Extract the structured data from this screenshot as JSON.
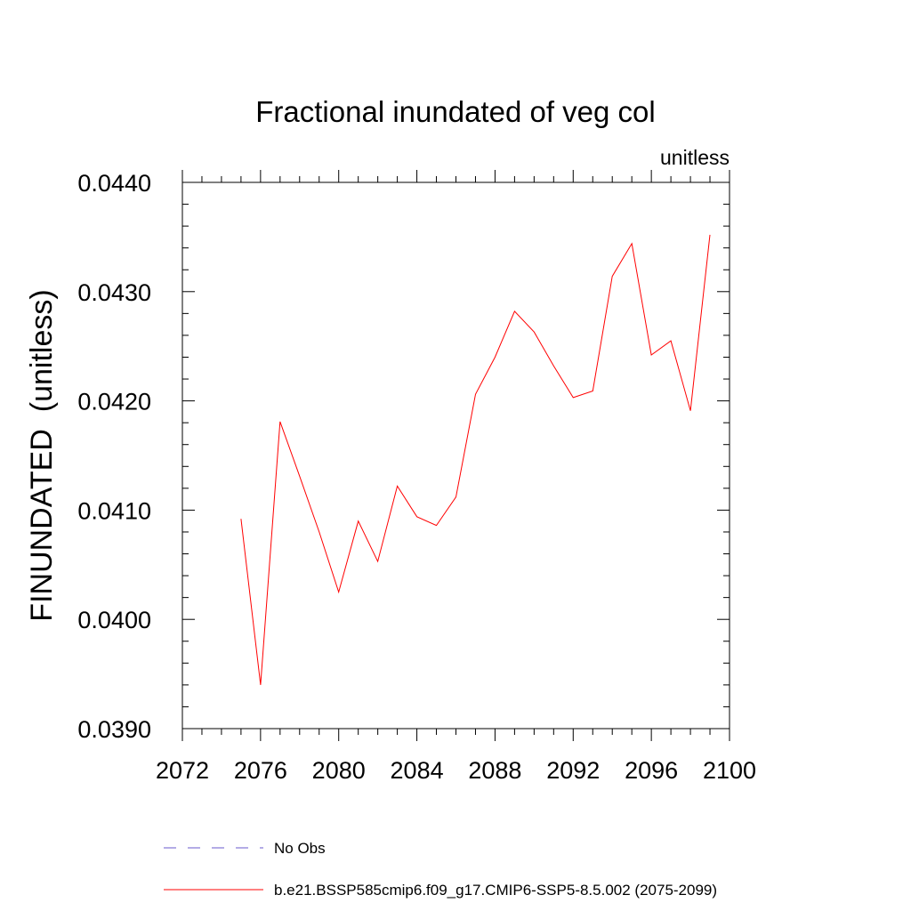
{
  "chart_data": {
    "type": "line",
    "title": "Fractional inundated of veg col",
    "units_label": "unitless",
    "ylabel": "FINUNDATED  (unitless)",
    "xlabel": "",
    "xlim": [
      2072,
      2100
    ],
    "ylim": [
      0.039,
      0.044
    ],
    "x_ticks": [
      2072,
      2076,
      2080,
      2084,
      2088,
      2092,
      2096,
      2100
    ],
    "y_ticks": [
      0.039,
      0.04,
      0.041,
      0.042,
      0.043,
      0.044
    ],
    "y_tick_labels": [
      "0.0390",
      "0.0400",
      "0.0410",
      "0.0420",
      "0.0430",
      "0.0440"
    ],
    "series": [
      {
        "name": "b.e21.BSSP585cmip6.f09_g17.CMIP6-SSP5-8.5.002 (2075-2099)",
        "color": "#ff0000",
        "x": [
          2075,
          2076,
          2077,
          2078,
          2079,
          2080,
          2081,
          2082,
          2083,
          2084,
          2085,
          2086,
          2087,
          2088,
          2089,
          2090,
          2091,
          2092,
          2093,
          2094,
          2095,
          2096,
          2097,
          2098,
          2099
        ],
        "y": [
          0.04092,
          0.0394,
          0.04181,
          0.04131,
          0.0408,
          0.04025,
          0.0409,
          0.04053,
          0.04122,
          0.04094,
          0.04086,
          0.04112,
          0.04206,
          0.0424,
          0.04282,
          0.04263,
          0.04232,
          0.04203,
          0.04209,
          0.04314,
          0.04344,
          0.04242,
          0.04255,
          0.04191,
          0.04352
        ]
      }
    ],
    "legend": {
      "placement": "bottom",
      "entries": [
        {
          "label": "No Obs",
          "color": "#6a5acd",
          "style": "dashed"
        },
        {
          "label": "b.e21.BSSP585cmip6.f09_g17.CMIP6-SSP5-8.5.002 (2075-2099)",
          "color": "#ff0000",
          "style": "solid"
        }
      ]
    },
    "grid": false
  }
}
